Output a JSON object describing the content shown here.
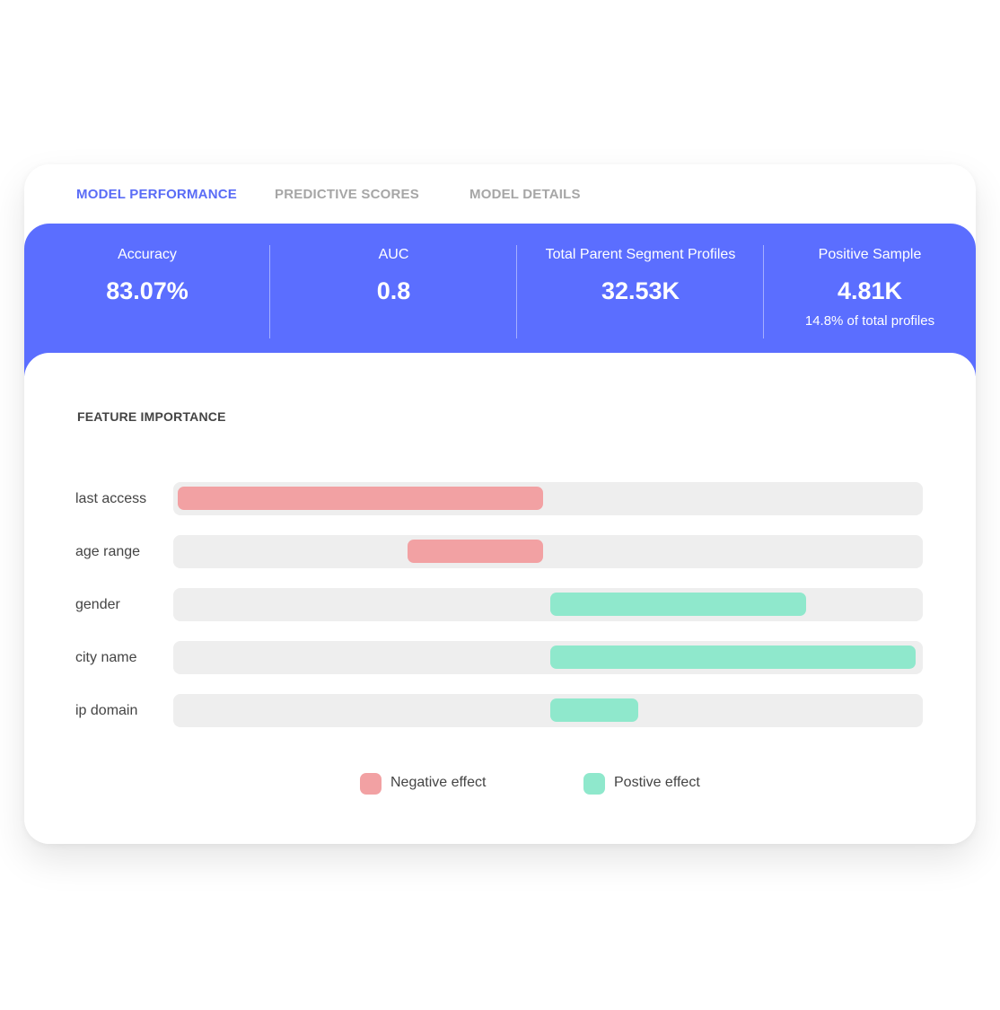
{
  "tabs": [
    {
      "label": "MODEL PERFORMANCE",
      "active": true
    },
    {
      "label": "PREDICTIVE SCORES",
      "active": false
    },
    {
      "label": "MODEL DETAILS",
      "active": false
    }
  ],
  "stats": [
    {
      "label": "Accuracy",
      "value": "83.07%",
      "sub": ""
    },
    {
      "label": "AUC",
      "value": "0.8",
      "sub": ""
    },
    {
      "label": "Total Parent Segment Profiles",
      "value": "32.53K",
      "sub": ""
    },
    {
      "label": "Positive Sample",
      "value": "4.81K",
      "sub": "14.8% of total profiles"
    }
  ],
  "colors": {
    "accent": "#5b6eff",
    "active_tab": "#5a6cf6",
    "negative": "#f2a1a3",
    "positive": "#8fe8cc",
    "track": "#eeeeee"
  },
  "chart_data": {
    "type": "bar",
    "orientation": "horizontal",
    "title": "FEATURE IMPORTANCE",
    "categories": [
      "last access",
      "age range",
      "gender",
      "city name",
      "ip domain"
    ],
    "values": [
      -1.0,
      -0.37,
      0.7,
      1.0,
      0.24
    ],
    "xlim": [
      -1.0,
      1.0
    ],
    "grid": false,
    "legend": {
      "placement": "bottom-center",
      "entries": [
        {
          "label": "Negative effect",
          "color": "#f2a1a3"
        },
        {
          "label": "Postive effect",
          "color": "#8fe8cc"
        }
      ]
    }
  }
}
